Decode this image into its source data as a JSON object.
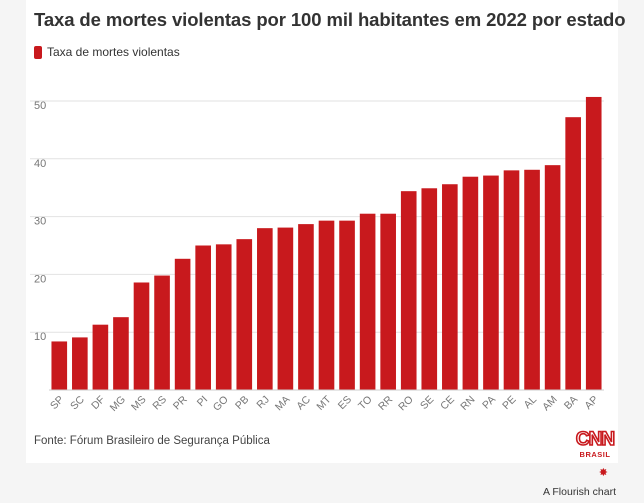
{
  "header": {
    "title": "Taxa de mortes violentas por 100 mil habitantes em 2022 por estado"
  },
  "legend": {
    "label": "Taxa de mortes violentas"
  },
  "footer": {
    "source": "Fonte: Fórum Brasileiro de Segurança Pública",
    "logo_text": "CNN",
    "logo_subtext": "BRASIL",
    "flourish_label": "A Flourish chart"
  },
  "colors": {
    "bar": "#c8191d",
    "grid": "#e2e2e2",
    "axis_text": "#777777"
  },
  "chart_data": {
    "type": "bar",
    "title": "Taxa de mortes violentas por 100 mil habitantes em 2022 por estado",
    "xlabel": "",
    "ylabel": "",
    "categories": [
      "SP",
      "SC",
      "DF",
      "MG",
      "MS",
      "RS",
      "PR",
      "PI",
      "GO",
      "PB",
      "RJ",
      "MA",
      "AC",
      "MT",
      "ES",
      "TO",
      "RR",
      "RO",
      "SE",
      "CE",
      "RN",
      "PA",
      "PE",
      "AL",
      "AM",
      "BA",
      "AP"
    ],
    "series": [
      {
        "name": "Taxa de mortes violentas",
        "values": [
          8.4,
          9.1,
          11.3,
          12.6,
          18.6,
          19.8,
          22.7,
          25.0,
          25.2,
          26.1,
          28.0,
          28.1,
          28.7,
          29.3,
          29.3,
          30.5,
          30.5,
          34.4,
          34.9,
          35.6,
          36.9,
          37.1,
          38.0,
          38.1,
          38.9,
          47.2,
          50.7
        ]
      }
    ],
    "ylim": [
      0,
      50
    ],
    "yticks": [
      10,
      20,
      30,
      40,
      50
    ],
    "grid": true,
    "legend_position": "top-left"
  }
}
